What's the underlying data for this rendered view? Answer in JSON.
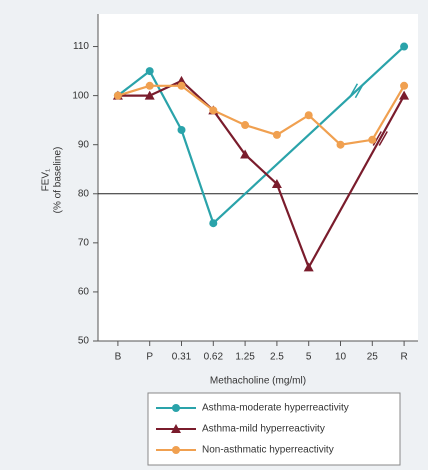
{
  "chart_data": {
    "type": "line",
    "xlabel": "Methacholine (mg/ml)",
    "ylabel": [
      "FEV₁",
      "(% of baseline)"
    ],
    "categories": [
      "B",
      "P",
      "0.31",
      "0.62",
      "1.25",
      "2.5",
      "5",
      "10",
      "25",
      "R"
    ],
    "ylim": [
      50,
      115
    ],
    "yticks": [
      50,
      60,
      70,
      80,
      90,
      100,
      110
    ],
    "reference_line": 80,
    "series": [
      {
        "name": "Asthma-moderate hyperreactivity",
        "color": "#2aa3aa",
        "marker": "circle",
        "values": [
          100,
          105,
          93,
          74,
          null,
          null,
          null,
          null,
          null,
          110
        ]
      },
      {
        "name": "Asthma-mild hyperreactivity",
        "color": "#7a1c2c",
        "marker": "triangle",
        "values": [
          100,
          100,
          103,
          97,
          88,
          82,
          65,
          null,
          null,
          100
        ]
      },
      {
        "name": "Non-asthmatic hyperreactivity",
        "color": "#f0a050",
        "marker": "circle",
        "values": [
          100,
          102,
          102,
          97,
          94,
          92,
          96,
          90,
          91,
          102
        ]
      }
    ]
  }
}
